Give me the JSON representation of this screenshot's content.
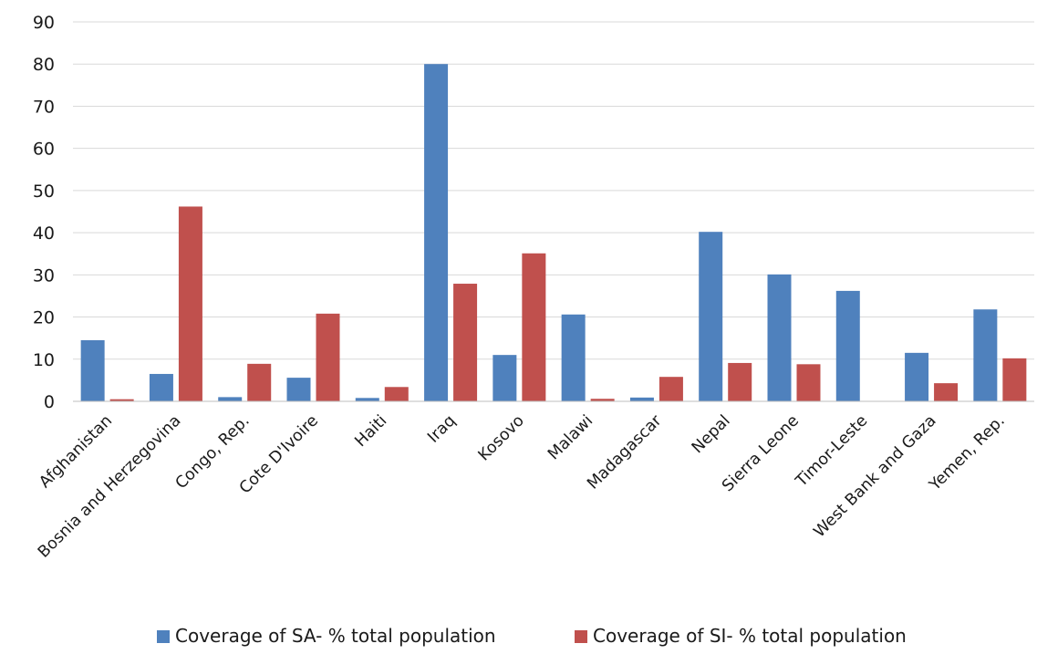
{
  "chart_data": {
    "type": "bar",
    "title": "",
    "xlabel": "",
    "ylabel": "",
    "ylim": [
      0,
      90
    ],
    "yticks": [
      "0",
      "10",
      "20",
      "30",
      "40",
      "50",
      "60",
      "70",
      "80",
      "90"
    ],
    "grid": true,
    "legend_position": "bottom",
    "categories": [
      "Afghanistan",
      "Bosnia and Herzegovina",
      "Congo, Rep.",
      "Cote D'Ivoire",
      "Haiti",
      "Iraq",
      "Kosovo",
      "Malawi",
      "Madagascar",
      "Nepal",
      "Sierra Leone",
      "Timor-Leste",
      "West Bank and Gaza",
      "Yemen, Rep."
    ],
    "series": [
      {
        "name": "Coverage of SA- % total population",
        "color": "#4f81bd",
        "values": [
          14.5,
          6.5,
          1,
          5.6,
          0.8,
          80,
          11,
          20.6,
          0.9,
          40.2,
          30.1,
          26.2,
          11.5,
          21.8
        ]
      },
      {
        "name": "Coverage of SI- % total population",
        "color": "#c0504d",
        "values": [
          0.5,
          46.2,
          8.9,
          20.8,
          3.4,
          27.9,
          35.1,
          0.6,
          5.8,
          9.1,
          8.8,
          0,
          4.3,
          10.2
        ]
      }
    ]
  }
}
